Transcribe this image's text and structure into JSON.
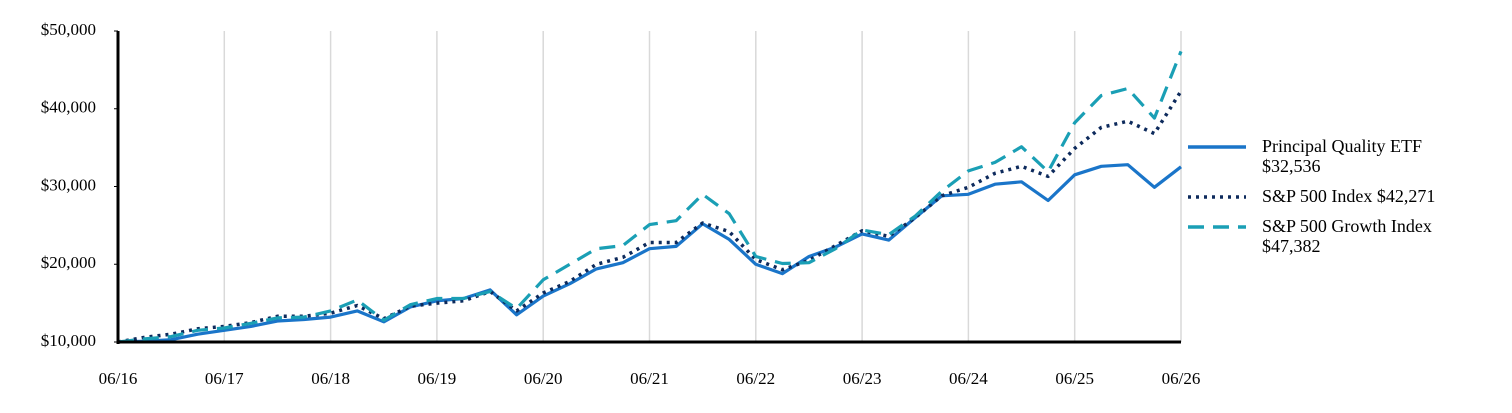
{
  "chart_data": {
    "type": "line",
    "categories": [
      "06/16",
      null,
      null,
      null,
      "06/17",
      null,
      null,
      null,
      "06/18",
      null,
      null,
      null,
      "06/19",
      null,
      null,
      null,
      "06/20",
      null,
      null,
      null,
      "06/21",
      null,
      null,
      null,
      "06/22",
      null,
      null,
      null,
      "06/23",
      null,
      null,
      null,
      "06/24",
      null,
      null,
      null,
      "06/25",
      null,
      null,
      null,
      "06/26"
    ],
    "series": [
      {
        "name": "Principal Quality ETF $32,536",
        "color": "#1a75c9",
        "style": "solid",
        "values": [
          10000,
          10100,
          10300,
          11000,
          11500,
          12000,
          12700,
          12900,
          13200,
          14000,
          12600,
          14500,
          15300,
          15600,
          16700,
          13500,
          15900,
          17500,
          19400,
          20200,
          22000,
          22300,
          25200,
          23200,
          20000,
          18800,
          21000,
          22200,
          23900,
          23100,
          26000,
          28800,
          29000,
          30300,
          30600,
          28200,
          31500,
          32600,
          32800,
          29900,
          32536
        ]
      },
      {
        "name": "S&P 500 Index $42,271",
        "color": "#0d2a5c",
        "style": "dotted",
        "values": [
          10000,
          10600,
          11000,
          11700,
          12000,
          12500,
          13300,
          13300,
          13700,
          14700,
          13000,
          14600,
          15000,
          15300,
          16500,
          14000,
          16300,
          17800,
          20000,
          20900,
          22800,
          22800,
          25300,
          24200,
          20600,
          19300,
          20500,
          22400,
          24300,
          23600,
          26000,
          28800,
          29900,
          31700,
          32600,
          31300,
          34900,
          37600,
          38400,
          36800,
          42271
        ]
      },
      {
        "name": "S&P 500 Growth Index $47,382",
        "color": "#1a9fb5",
        "style": "dashed",
        "values": [
          10000,
          10400,
          10700,
          11500,
          11800,
          12400,
          13100,
          13200,
          14000,
          15400,
          12800,
          14800,
          15600,
          15600,
          16500,
          14300,
          18000,
          20000,
          22000,
          22400,
          25100,
          25600,
          29000,
          26500,
          21000,
          20100,
          20200,
          22000,
          24400,
          23800,
          26200,
          29400,
          32000,
          33100,
          35100,
          31900,
          38200,
          41700,
          42600,
          38800,
          47382
        ]
      }
    ],
    "ylim": [
      10000,
      50000
    ],
    "yticks": [
      {
        "value": 10000,
        "label": "$10,000"
      },
      {
        "value": 20000,
        "label": "$20,000"
      },
      {
        "value": 30000,
        "label": "$30,000"
      },
      {
        "value": 40000,
        "label": "$40,000"
      },
      {
        "value": 50000,
        "label": "$50,000"
      }
    ],
    "grid": true,
    "legend": "right"
  }
}
